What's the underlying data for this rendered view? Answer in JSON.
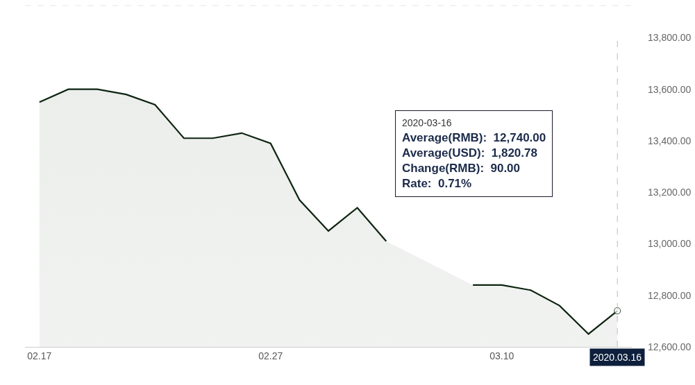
{
  "chart_data": {
    "type": "area",
    "categories": [
      "02.17",
      null,
      null,
      null,
      null,
      null,
      null,
      null,
      "02.27",
      null,
      null,
      null,
      null,
      null,
      null,
      null,
      "03.10",
      null,
      null,
      null,
      "2020.03.16"
    ],
    "series": [
      {
        "color": "#0d2410",
        "values": [
          13550,
          13600,
          13600,
          13580,
          13540,
          13410,
          13410,
          13430,
          13390,
          13170,
          13050,
          13140,
          13010,
          null,
          null,
          12840,
          12840,
          12820,
          12760,
          12650,
          12740
        ]
      }
    ],
    "ylim": [
      12600,
      13925
    ],
    "yticks": [
      {
        "value": 12600,
        "label": "12,600.00"
      },
      {
        "value": 12800,
        "label": "12,800.00"
      },
      {
        "value": 13000,
        "label": "13,000.00"
      },
      {
        "value": 13200,
        "label": "13,200.00"
      },
      {
        "value": 13400,
        "label": "13,400.00"
      },
      {
        "value": 13600,
        "label": "13,600.00"
      },
      {
        "value": 13800,
        "label": "13,800.00"
      }
    ],
    "ref_lines": [
      {
        "axis": "x",
        "value": "2020.03.16",
        "color": "#bbbbbb",
        "line_style": "dashed"
      }
    ],
    "annotations": [
      "2020-03-16",
      "Average(RMB):  12,740.00",
      "Average(USD):  1,820.78",
      "Change(RMB):  90.00",
      "Rate:  0.71%"
    ]
  }
}
